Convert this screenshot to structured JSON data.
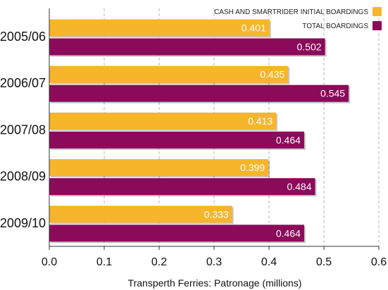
{
  "chart_data": {
    "type": "bar",
    "orientation": "horizontal",
    "categories": [
      "2005/06",
      "2006/07",
      "2007/08",
      "2008/09",
      "2009/10"
    ],
    "series": [
      {
        "name": "CASH AND SMARTRIDER INITIAL BOARDINGS",
        "color": "#f7b52c",
        "values": [
          0.401,
          0.435,
          0.413,
          0.399,
          0.333
        ]
      },
      {
        "name": "TOTAL BOARDINGS",
        "color": "#8b0a5a",
        "values": [
          0.502,
          0.545,
          0.464,
          0.484,
          0.464
        ]
      }
    ],
    "value_labels": [
      [
        "0.401",
        "0.435",
        "0.413",
        "0.399",
        "0.333"
      ],
      [
        "0.502",
        "0.545",
        "0.464",
        "0.484",
        "0.464"
      ]
    ],
    "xlabel": "Transperth Ferries: Patronage (millions)",
    "xlim": [
      0.0,
      0.6
    ],
    "xticks": [
      "0.0",
      "0.1",
      "0.2",
      "0.3",
      "0.4",
      "0.5",
      "0.6"
    ],
    "grid": "vertical dashed",
    "legend_position": "top-right"
  }
}
